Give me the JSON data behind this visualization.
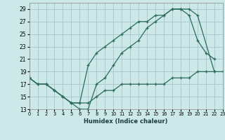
{
  "xlabel": "Humidex (Indice chaleur)",
  "bg_color": "#cce8e8",
  "grid_color": "#aacccc",
  "line_color": "#2a6b5e",
  "ylim": [
    13,
    30
  ],
  "xlim": [
    0,
    23
  ],
  "yticks": [
    13,
    15,
    17,
    19,
    21,
    23,
    25,
    27,
    29
  ],
  "xticks": [
    0,
    1,
    2,
    3,
    4,
    5,
    6,
    7,
    8,
    9,
    10,
    11,
    12,
    13,
    14,
    15,
    16,
    17,
    18,
    19,
    20,
    21,
    22,
    23
  ],
  "line1_x": [
    0,
    1,
    2,
    3,
    4,
    5,
    6,
    7,
    8,
    9,
    10,
    11,
    12,
    13,
    14,
    15,
    16,
    17,
    18,
    19,
    20,
    22
  ],
  "line1_y": [
    18,
    17,
    17,
    16,
    15,
    14,
    13,
    13,
    17,
    18,
    20,
    22,
    23,
    24,
    26,
    27,
    28,
    29,
    29,
    29,
    28,
    19
  ],
  "line2_x": [
    0,
    1,
    2,
    3,
    4,
    5,
    6,
    7,
    8,
    9,
    10,
    11,
    12,
    13,
    14,
    15,
    16,
    17,
    18,
    19,
    20,
    21,
    22
  ],
  "line2_y": [
    18,
    17,
    17,
    16,
    15,
    14,
    14,
    20,
    22,
    23,
    24,
    25,
    26,
    27,
    27,
    28,
    28,
    29,
    29,
    28,
    24,
    22,
    21
  ],
  "line3_x": [
    0,
    1,
    2,
    3,
    4,
    5,
    6,
    7,
    8,
    9,
    10,
    11,
    12,
    13,
    14,
    15,
    16,
    17,
    18,
    19,
    20,
    21,
    22,
    23
  ],
  "line3_y": [
    18,
    17,
    17,
    16,
    15,
    14,
    14,
    14,
    15,
    16,
    16,
    17,
    17,
    17,
    17,
    17,
    17,
    18,
    18,
    18,
    19,
    19,
    19,
    19
  ]
}
